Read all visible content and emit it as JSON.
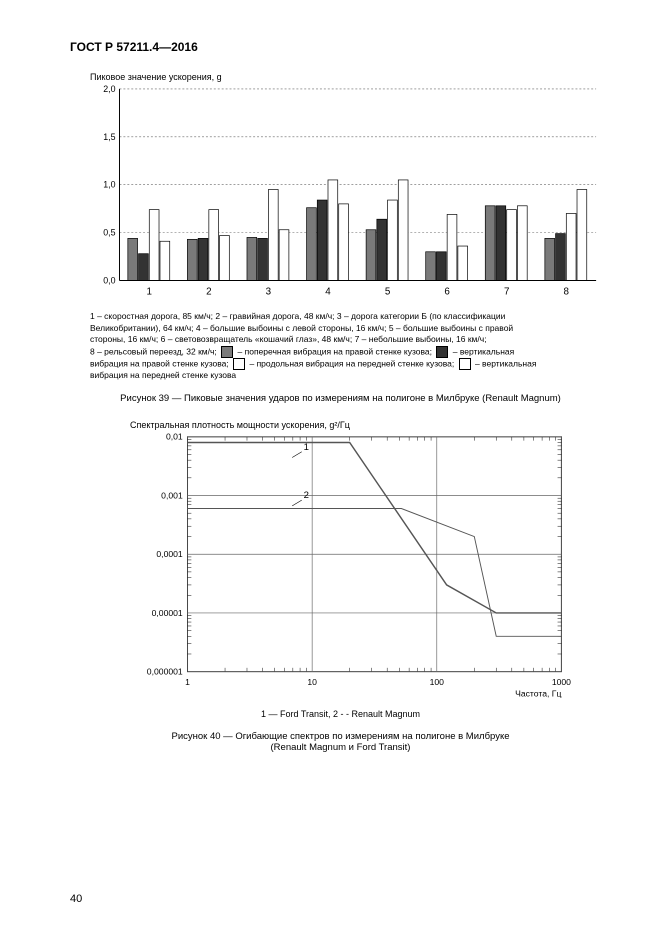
{
  "doc": {
    "header": "ГОСТ Р 57211.4—2016",
    "page_number": "40"
  },
  "fig39": {
    "type": "bar",
    "title": "Пиковое значение ускорения, g",
    "ylim": [
      0.0,
      2.0
    ],
    "ytick_step": 0.5,
    "yticks": [
      "0,0",
      "0,5",
      "1,0",
      "1,5",
      "2,0"
    ],
    "categories": [
      "1",
      "2",
      "3",
      "4",
      "5",
      "6",
      "7",
      "8"
    ],
    "series_colors": [
      "#7a7a7a",
      "#333333",
      "#ffffff",
      "#ffffff"
    ],
    "series_border": "#000000",
    "bar_width": 0.18,
    "grid_color": "#666666",
    "background_color": "#ffffff",
    "values": [
      [
        0.44,
        0.28,
        0.74,
        0.41
      ],
      [
        0.43,
        0.44,
        0.74,
        0.47
      ],
      [
        0.45,
        0.44,
        0.95,
        0.53
      ],
      [
        0.76,
        0.84,
        1.05,
        0.8
      ],
      [
        0.53,
        0.64,
        0.84,
        1.05
      ],
      [
        0.3,
        0.3,
        0.69,
        0.36
      ],
      [
        0.78,
        0.78,
        0.74,
        0.78
      ],
      [
        0.44,
        0.49,
        0.7,
        0.95
      ]
    ],
    "legend_lines": {
      "l1": "1 – скоростная дорога, 85 км/ч; 2 – гравийная дорога, 48 км/ч; 3 – дорога категории Б (по классификации",
      "l2": "Великобритании), 64 км/ч; 4 – большие выбоины с левой стороны, 16 км/ч; 5 – большие выбоины с правой",
      "l3": "стороны, 16 км/ч; 6 – световозвращатель «кошачий глаз», 48 км/ч; 7 – небольшие выбоины, 16 км/ч;",
      "l4a": "8 – рельсовый переезд, 32 км/ч; ",
      "l4b": " – поперечная вибрация на правой стенке кузова;  ",
      "l4c": " – вертикальная",
      "l5a": "вибрация на правой стенке кузова; ",
      "l5b": " – продольная вибрация на передней стенке кузова;  ",
      "l5c": " – вертикальная",
      "l6": "вибрация на передней стенке кузова"
    },
    "caption": "Рисунок 39 — Пиковые значения ударов по измерениям на полигоне в Милбруке (Renault Magnum)"
  },
  "fig40": {
    "type": "line",
    "title": "Спектральная плотность мощности ускорения, g²/Гц",
    "xlabel": "Частота, Гц",
    "xscale": "log",
    "yscale": "log",
    "xlim": [
      1,
      1000
    ],
    "ylim": [
      1e-06,
      0.01
    ],
    "xticks": [
      "1",
      "10",
      "100",
      "1000"
    ],
    "yticks": [
      "0,000001",
      "0,00001",
      "0,0001",
      "0,001",
      "0,01"
    ],
    "grid_color": "#666666",
    "background_color": "#ffffff",
    "series": [
      {
        "label": "1",
        "name": "Ford Transit",
        "color": "#555555",
        "width": 1.5,
        "points": [
          [
            1,
            0.008
          ],
          [
            20,
            0.008
          ],
          [
            120,
            3e-05
          ],
          [
            300,
            1e-05
          ],
          [
            1000,
            1e-05
          ]
        ]
      },
      {
        "label": "2",
        "name": "Renault Magnum",
        "color": "#555555",
        "width": 1.0,
        "points": [
          [
            1,
            0.0006
          ],
          [
            52,
            0.0006
          ],
          [
            200,
            0.0002
          ],
          [
            300,
            4e-06
          ],
          [
            1000,
            4e-06
          ]
        ]
      }
    ],
    "series_label_pos": {
      "1": [
        6,
        0.006
      ],
      "2": [
        6,
        0.0009
      ]
    },
    "legend_line": "1 — Ford Transit, 2 - - Renault Magnum",
    "caption_l1": "Рисунок 40 — Огибающие спектров по измерениям на полигоне в Милбруке",
    "caption_l2": "(Renault Magnum и Ford Transit)"
  }
}
